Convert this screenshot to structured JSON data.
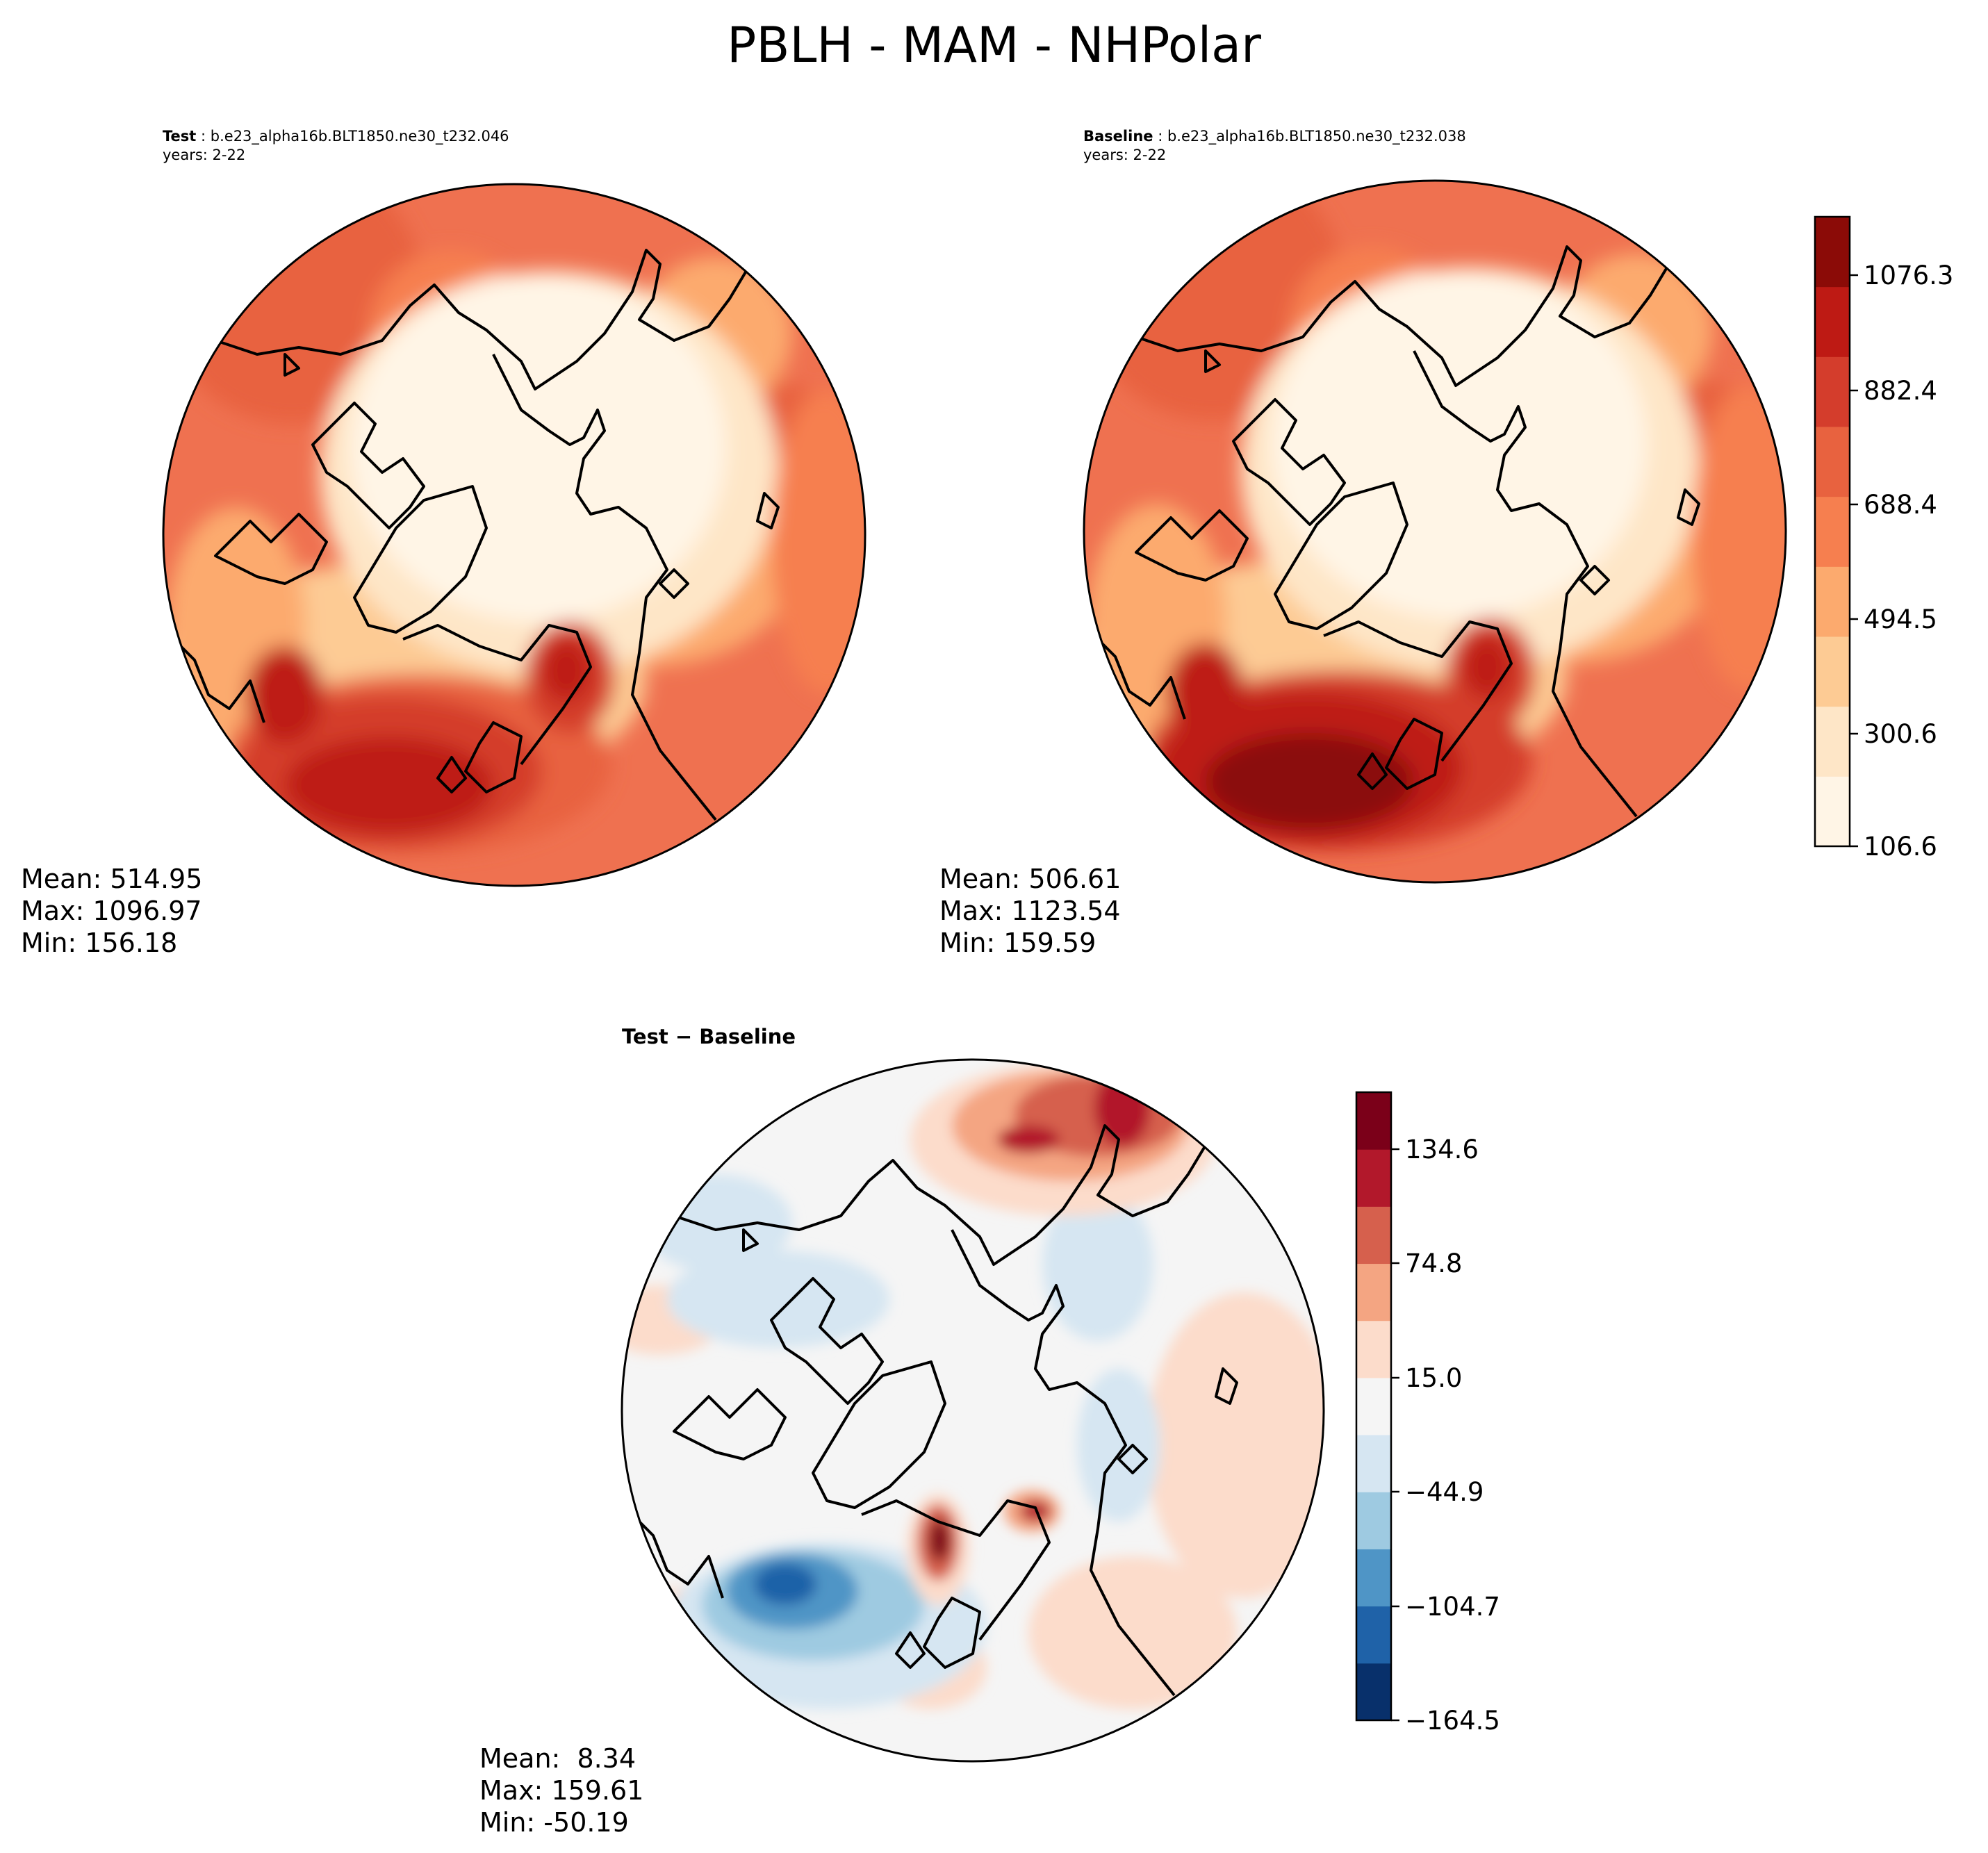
{
  "figure": {
    "title": "PBLH - MAM - NHPolar"
  },
  "panels": {
    "test": {
      "label": "Test",
      "case_name": "b.e23_alpha16b.BLT1850.ne30_t232.046",
      "years": "years: 2-22",
      "stats": {
        "mean": "Mean: 514.95",
        "max": "Max: 1096.97",
        "min": "Min: 156.18"
      }
    },
    "baseline": {
      "label": "Baseline",
      "case_name": "b.e23_alpha16b.BLT1850.ne30_t232.038",
      "years": "years: 2-22",
      "stats": {
        "mean": "Mean: 506.61",
        "max": "Max: 1123.54",
        "min": "Min: 159.59"
      }
    },
    "difference": {
      "title": "Test − Baseline",
      "stats": {
        "mean": "Mean:  8.34",
        "max": "Max: 159.61",
        "min": "Min: -50.19"
      }
    }
  },
  "colorbars": {
    "main": {
      "ticks": [
        "1076.3",
        "882.4",
        "688.4",
        "494.5",
        "300.6",
        "106.6"
      ],
      "colors": [
        "#fff5e6",
        "#fee6c7",
        "#fdcb94",
        "#fcaa6e",
        "#f67f4f",
        "#e8623f",
        "#d43d2c",
        "#be1a14",
        "#8b0b07"
      ]
    },
    "diff": {
      "ticks": [
        "134.6",
        "74.8",
        "15.0",
        "−44.9",
        "−104.7",
        "−164.5"
      ],
      "colors": [
        "#08306b",
        "#1f62a8",
        "#4f95c6",
        "#9ecae1",
        "#d6e6f2",
        "#f5f5f5",
        "#fcdccb",
        "#f4a582",
        "#d6604d",
        "#b2182b",
        "#7b0019"
      ]
    }
  }
}
